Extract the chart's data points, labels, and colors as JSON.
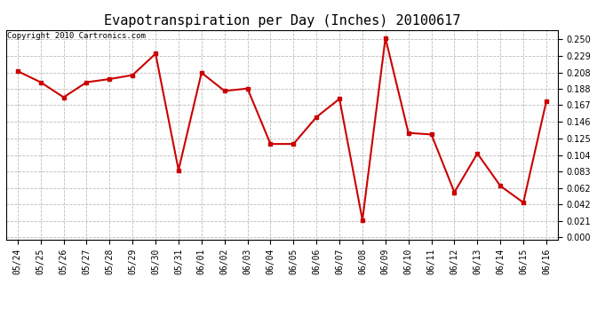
{
  "title": "Evapotranspiration per Day (Inches) 20100617",
  "copyright_text": "Copyright 2010 Cartronics.com",
  "x_labels": [
    "05/24",
    "05/25",
    "05/26",
    "05/27",
    "05/28",
    "05/29",
    "05/30",
    "05/31",
    "06/01",
    "06/02",
    "06/03",
    "06/04",
    "06/05",
    "06/06",
    "06/07",
    "06/08",
    "06/09",
    "06/10",
    "06/11",
    "06/12",
    "06/13",
    "06/14",
    "06/15",
    "06/16"
  ],
  "y_values": [
    0.21,
    0.196,
    0.177,
    0.196,
    0.2,
    0.205,
    0.232,
    0.085,
    0.208,
    0.185,
    0.188,
    0.118,
    0.118,
    0.152,
    0.175,
    0.022,
    0.252,
    0.132,
    0.13,
    0.057,
    0.106,
    0.065,
    0.044,
    0.172
  ],
  "y_ticks": [
    0.0,
    0.021,
    0.042,
    0.062,
    0.083,
    0.104,
    0.125,
    0.146,
    0.167,
    0.188,
    0.208,
    0.229,
    0.25
  ],
  "line_color": "#cc0000",
  "marker": "s",
  "marker_size": 3,
  "grid_color": "#bbbbbb",
  "background_color": "#ffffff",
  "plot_bg_color": "#ffffff",
  "title_fontsize": 11,
  "tick_fontsize": 7,
  "copyright_fontsize": 6.5,
  "ylim_min": -0.003,
  "ylim_max": 0.262
}
